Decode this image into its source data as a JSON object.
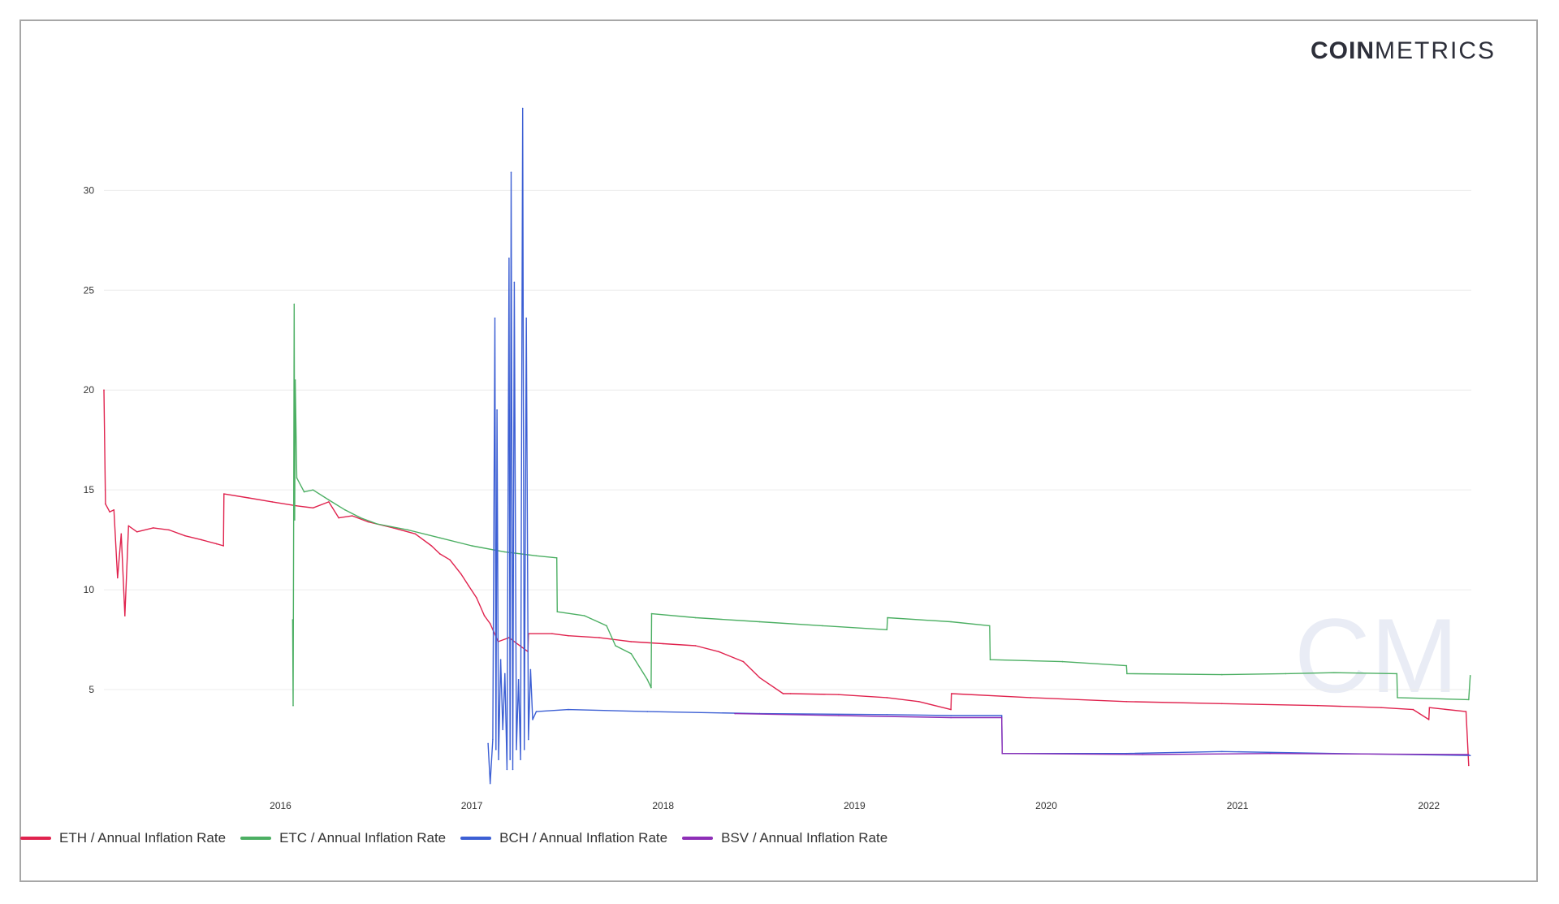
{
  "logo": {
    "bold": "COIN",
    "light": "METRICS"
  },
  "watermark": "CM",
  "chart_data": {
    "type": "line",
    "title": "",
    "xlabel": "",
    "ylabel": "",
    "xlim": [
      "2015-07-30",
      "2022-09-20"
    ],
    "ylim": [
      0,
      34
    ],
    "y_ticks": [
      5,
      10,
      15,
      20,
      25,
      30
    ],
    "x_ticks": [
      "2016",
      "2017",
      "2018",
      "2019",
      "2020",
      "2021",
      "2022"
    ],
    "grid": "horizontal",
    "legend_position": "bottom-left",
    "series": [
      {
        "name": "ETH / Annual Inflation Rate",
        "color": "#e0234e",
        "points": [
          [
            "2015-07-30",
            20.0
          ],
          [
            "2015-08-02",
            14.3
          ],
          [
            "2015-08-10",
            13.9
          ],
          [
            "2015-08-18",
            14.0
          ],
          [
            "2015-08-25",
            10.6
          ],
          [
            "2015-09-01",
            12.8
          ],
          [
            "2015-09-08",
            8.7
          ],
          [
            "2015-09-15",
            13.2
          ],
          [
            "2015-10-01",
            12.9
          ],
          [
            "2015-11-01",
            13.1
          ],
          [
            "2015-12-01",
            13.0
          ],
          [
            "2016-01-01",
            12.7
          ],
          [
            "2016-02-01",
            12.5
          ],
          [
            "2016-03-01",
            12.3
          ],
          [
            "2016-03-14",
            12.2
          ],
          [
            "2016-03-15",
            14.8
          ],
          [
            "2016-05-01",
            14.6
          ],
          [
            "2016-06-15",
            14.4
          ],
          [
            "2016-08-01",
            14.2
          ],
          [
            "2016-09-01",
            14.1
          ],
          [
            "2016-10-01",
            14.4
          ],
          [
            "2016-10-20",
            13.6
          ],
          [
            "2016-11-15",
            13.7
          ],
          [
            "2016-12-15",
            13.4
          ],
          [
            "2017-02-01",
            13.1
          ],
          [
            "2017-03-15",
            12.8
          ],
          [
            "2017-04-15",
            12.2
          ],
          [
            "2017-05-01",
            11.8
          ],
          [
            "2017-05-20",
            11.5
          ],
          [
            "2017-06-10",
            10.8
          ],
          [
            "2017-06-25",
            10.2
          ],
          [
            "2017-07-10",
            9.6
          ],
          [
            "2017-07-25",
            8.7
          ],
          [
            "2017-08-05",
            8.3
          ],
          [
            "2017-08-20",
            7.4
          ],
          [
            "2017-09-10",
            7.6
          ],
          [
            "2017-10-16",
            6.9
          ],
          [
            "2017-10-17",
            7.8
          ],
          [
            "2017-12-01",
            7.8
          ],
          [
            "2018-01-01",
            7.7
          ],
          [
            "2018-03-01",
            7.6
          ],
          [
            "2018-05-01",
            7.4
          ],
          [
            "2018-07-01",
            7.3
          ],
          [
            "2018-09-01",
            7.2
          ],
          [
            "2018-10-15",
            6.9
          ],
          [
            "2018-12-01",
            6.4
          ],
          [
            "2019-01-01",
            5.6
          ],
          [
            "2019-02-15",
            4.8
          ],
          [
            "2019-03-01",
            4.8
          ],
          [
            "2019-06-01",
            4.75
          ],
          [
            "2019-09-01",
            4.6
          ],
          [
            "2019-11-01",
            4.4
          ],
          [
            "2020-01-01",
            4.0
          ],
          [
            "2020-01-02",
            4.8
          ],
          [
            "2020-06-01",
            4.6
          ],
          [
            "2020-12-01",
            4.4
          ],
          [
            "2021-06-01",
            4.3
          ],
          [
            "2021-12-01",
            4.2
          ],
          [
            "2022-04-01",
            4.1
          ],
          [
            "2022-06-01",
            4.0
          ],
          [
            "2022-07-01",
            3.5
          ],
          [
            "2022-07-02",
            4.1
          ],
          [
            "2022-09-10",
            3.9
          ],
          [
            "2022-09-15",
            1.2
          ]
        ]
      },
      {
        "name": "ETC / Annual Inflation Rate",
        "color": "#4caf63",
        "points": [
          [
            "2016-07-24",
            8.5
          ],
          [
            "2016-07-25",
            4.2
          ],
          [
            "2016-07-26",
            14.0
          ],
          [
            "2016-07-27",
            24.3
          ],
          [
            "2016-07-28",
            13.5
          ],
          [
            "2016-07-29",
            20.5
          ],
          [
            "2016-08-01",
            15.6
          ],
          [
            "2016-08-15",
            14.9
          ],
          [
            "2016-09-01",
            15.0
          ],
          [
            "2016-10-01",
            14.5
          ],
          [
            "2016-11-01",
            14.0
          ],
          [
            "2016-12-01",
            13.6
          ],
          [
            "2017-01-01",
            13.3
          ],
          [
            "2017-03-01",
            13.0
          ],
          [
            "2017-05-01",
            12.6
          ],
          [
            "2017-07-01",
            12.2
          ],
          [
            "2017-09-01",
            11.9
          ],
          [
            "2017-11-01",
            11.7
          ],
          [
            "2017-12-10",
            11.6
          ],
          [
            "2017-12-11",
            8.9
          ],
          [
            "2018-02-01",
            8.7
          ],
          [
            "2018-03-15",
            8.2
          ],
          [
            "2018-04-01",
            7.2
          ],
          [
            "2018-05-01",
            6.8
          ],
          [
            "2018-06-01",
            5.5
          ],
          [
            "2018-06-08",
            5.1
          ],
          [
            "2018-06-09",
            8.8
          ],
          [
            "2018-09-01",
            8.6
          ],
          [
            "2019-01-01",
            8.4
          ],
          [
            "2019-05-01",
            8.2
          ],
          [
            "2019-09-01",
            8.0
          ],
          [
            "2019-09-02",
            8.6
          ],
          [
            "2020-01-01",
            8.4
          ],
          [
            "2020-03-15",
            8.2
          ],
          [
            "2020-03-16",
            6.5
          ],
          [
            "2020-08-01",
            6.4
          ],
          [
            "2020-12-01",
            6.2
          ],
          [
            "2020-12-02",
            5.8
          ],
          [
            "2021-06-01",
            5.75
          ],
          [
            "2021-10-01",
            5.8
          ],
          [
            "2022-01-01",
            5.85
          ],
          [
            "2022-05-01",
            5.8
          ],
          [
            "2022-05-02",
            4.6
          ],
          [
            "2022-09-15",
            4.5
          ],
          [
            "2022-09-18",
            5.7
          ]
        ]
      },
      {
        "name": "BCH / Annual Inflation Rate",
        "color": "#3c5fd4",
        "points": [
          [
            "2017-08-01",
            2.3
          ],
          [
            "2017-08-05",
            0.3
          ],
          [
            "2017-08-10",
            2.5
          ],
          [
            "2017-08-14",
            23.6
          ],
          [
            "2017-08-16",
            2.0
          ],
          [
            "2017-08-18",
            19.0
          ],
          [
            "2017-08-21",
            1.5
          ],
          [
            "2017-08-25",
            6.5
          ],
          [
            "2017-08-29",
            3.0
          ],
          [
            "2017-09-02",
            5.8
          ],
          [
            "2017-09-06",
            1.0
          ],
          [
            "2017-09-10",
            26.6
          ],
          [
            "2017-09-12",
            1.5
          ],
          [
            "2017-09-14",
            30.9
          ],
          [
            "2017-09-17",
            1.0
          ],
          [
            "2017-09-20",
            25.4
          ],
          [
            "2017-09-24",
            2.0
          ],
          [
            "2017-09-28",
            5.5
          ],
          [
            "2017-10-02",
            1.5
          ],
          [
            "2017-10-06",
            34.1
          ],
          [
            "2017-10-09",
            2.0
          ],
          [
            "2017-10-13",
            23.6
          ],
          [
            "2017-10-17",
            2.5
          ],
          [
            "2017-10-21",
            6.0
          ],
          [
            "2017-10-25",
            3.5
          ],
          [
            "2017-11-01",
            3.9
          ],
          [
            "2018-01-01",
            4.0
          ],
          [
            "2018-06-01",
            3.9
          ],
          [
            "2019-01-01",
            3.8
          ],
          [
            "2019-09-01",
            3.75
          ],
          [
            "2020-01-01",
            3.7
          ],
          [
            "2020-04-07",
            3.7
          ],
          [
            "2020-04-08",
            1.8
          ],
          [
            "2020-12-01",
            1.8
          ],
          [
            "2021-06-01",
            1.9
          ],
          [
            "2022-01-01",
            1.8
          ],
          [
            "2022-09-18",
            1.7
          ]
        ]
      },
      {
        "name": "BSV / Annual Inflation Rate",
        "color": "#8e2fb7",
        "points": [
          [
            "2018-11-15",
            3.8
          ],
          [
            "2019-06-01",
            3.7
          ],
          [
            "2020-01-01",
            3.6
          ],
          [
            "2020-04-07",
            3.6
          ],
          [
            "2020-04-08",
            1.8
          ],
          [
            "2021-01-01",
            1.75
          ],
          [
            "2021-09-01",
            1.8
          ],
          [
            "2022-09-15",
            1.75
          ]
        ]
      }
    ]
  }
}
